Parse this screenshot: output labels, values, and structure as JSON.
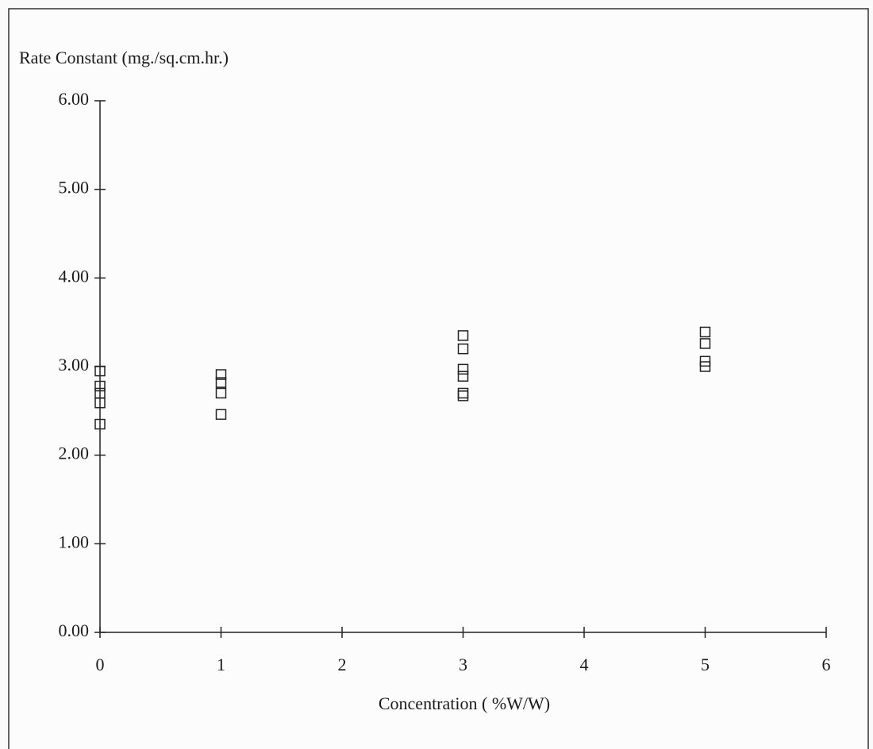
{
  "chart_data": {
    "type": "scatter",
    "y_label": "Rate Constant (mg./sq.cm.hr.)",
    "x_label": "Concentration ( %W/W)",
    "x": [
      0,
      0,
      0,
      0,
      0,
      1,
      1,
      1,
      1,
      3,
      3,
      3,
      3,
      3,
      3,
      5,
      5,
      5,
      5
    ],
    "values": [
      2.95,
      2.78,
      2.7,
      2.59,
      2.35,
      2.91,
      2.82,
      2.7,
      2.46,
      3.35,
      3.2,
      2.97,
      2.89,
      2.7,
      2.67,
      3.39,
      3.26,
      3.06,
      3.0
    ],
    "color": "#222222",
    "marker": "square",
    "xlim": [
      0,
      6
    ],
    "xticks": [
      0,
      1,
      2,
      3,
      4,
      5,
      6
    ],
    "ylim": [
      0,
      6
    ],
    "yticks": [
      {
        "value": 0,
        "label": "0.00"
      },
      {
        "value": 1,
        "label": "1.00"
      },
      {
        "value": 2,
        "label": "2.00"
      },
      {
        "value": 3,
        "label": "3.00"
      },
      {
        "value": 4,
        "label": "4.00"
      },
      {
        "value": 5,
        "label": "5.00"
      },
      {
        "value": 6,
        "label": "6.00"
      }
    ],
    "grid": false
  }
}
